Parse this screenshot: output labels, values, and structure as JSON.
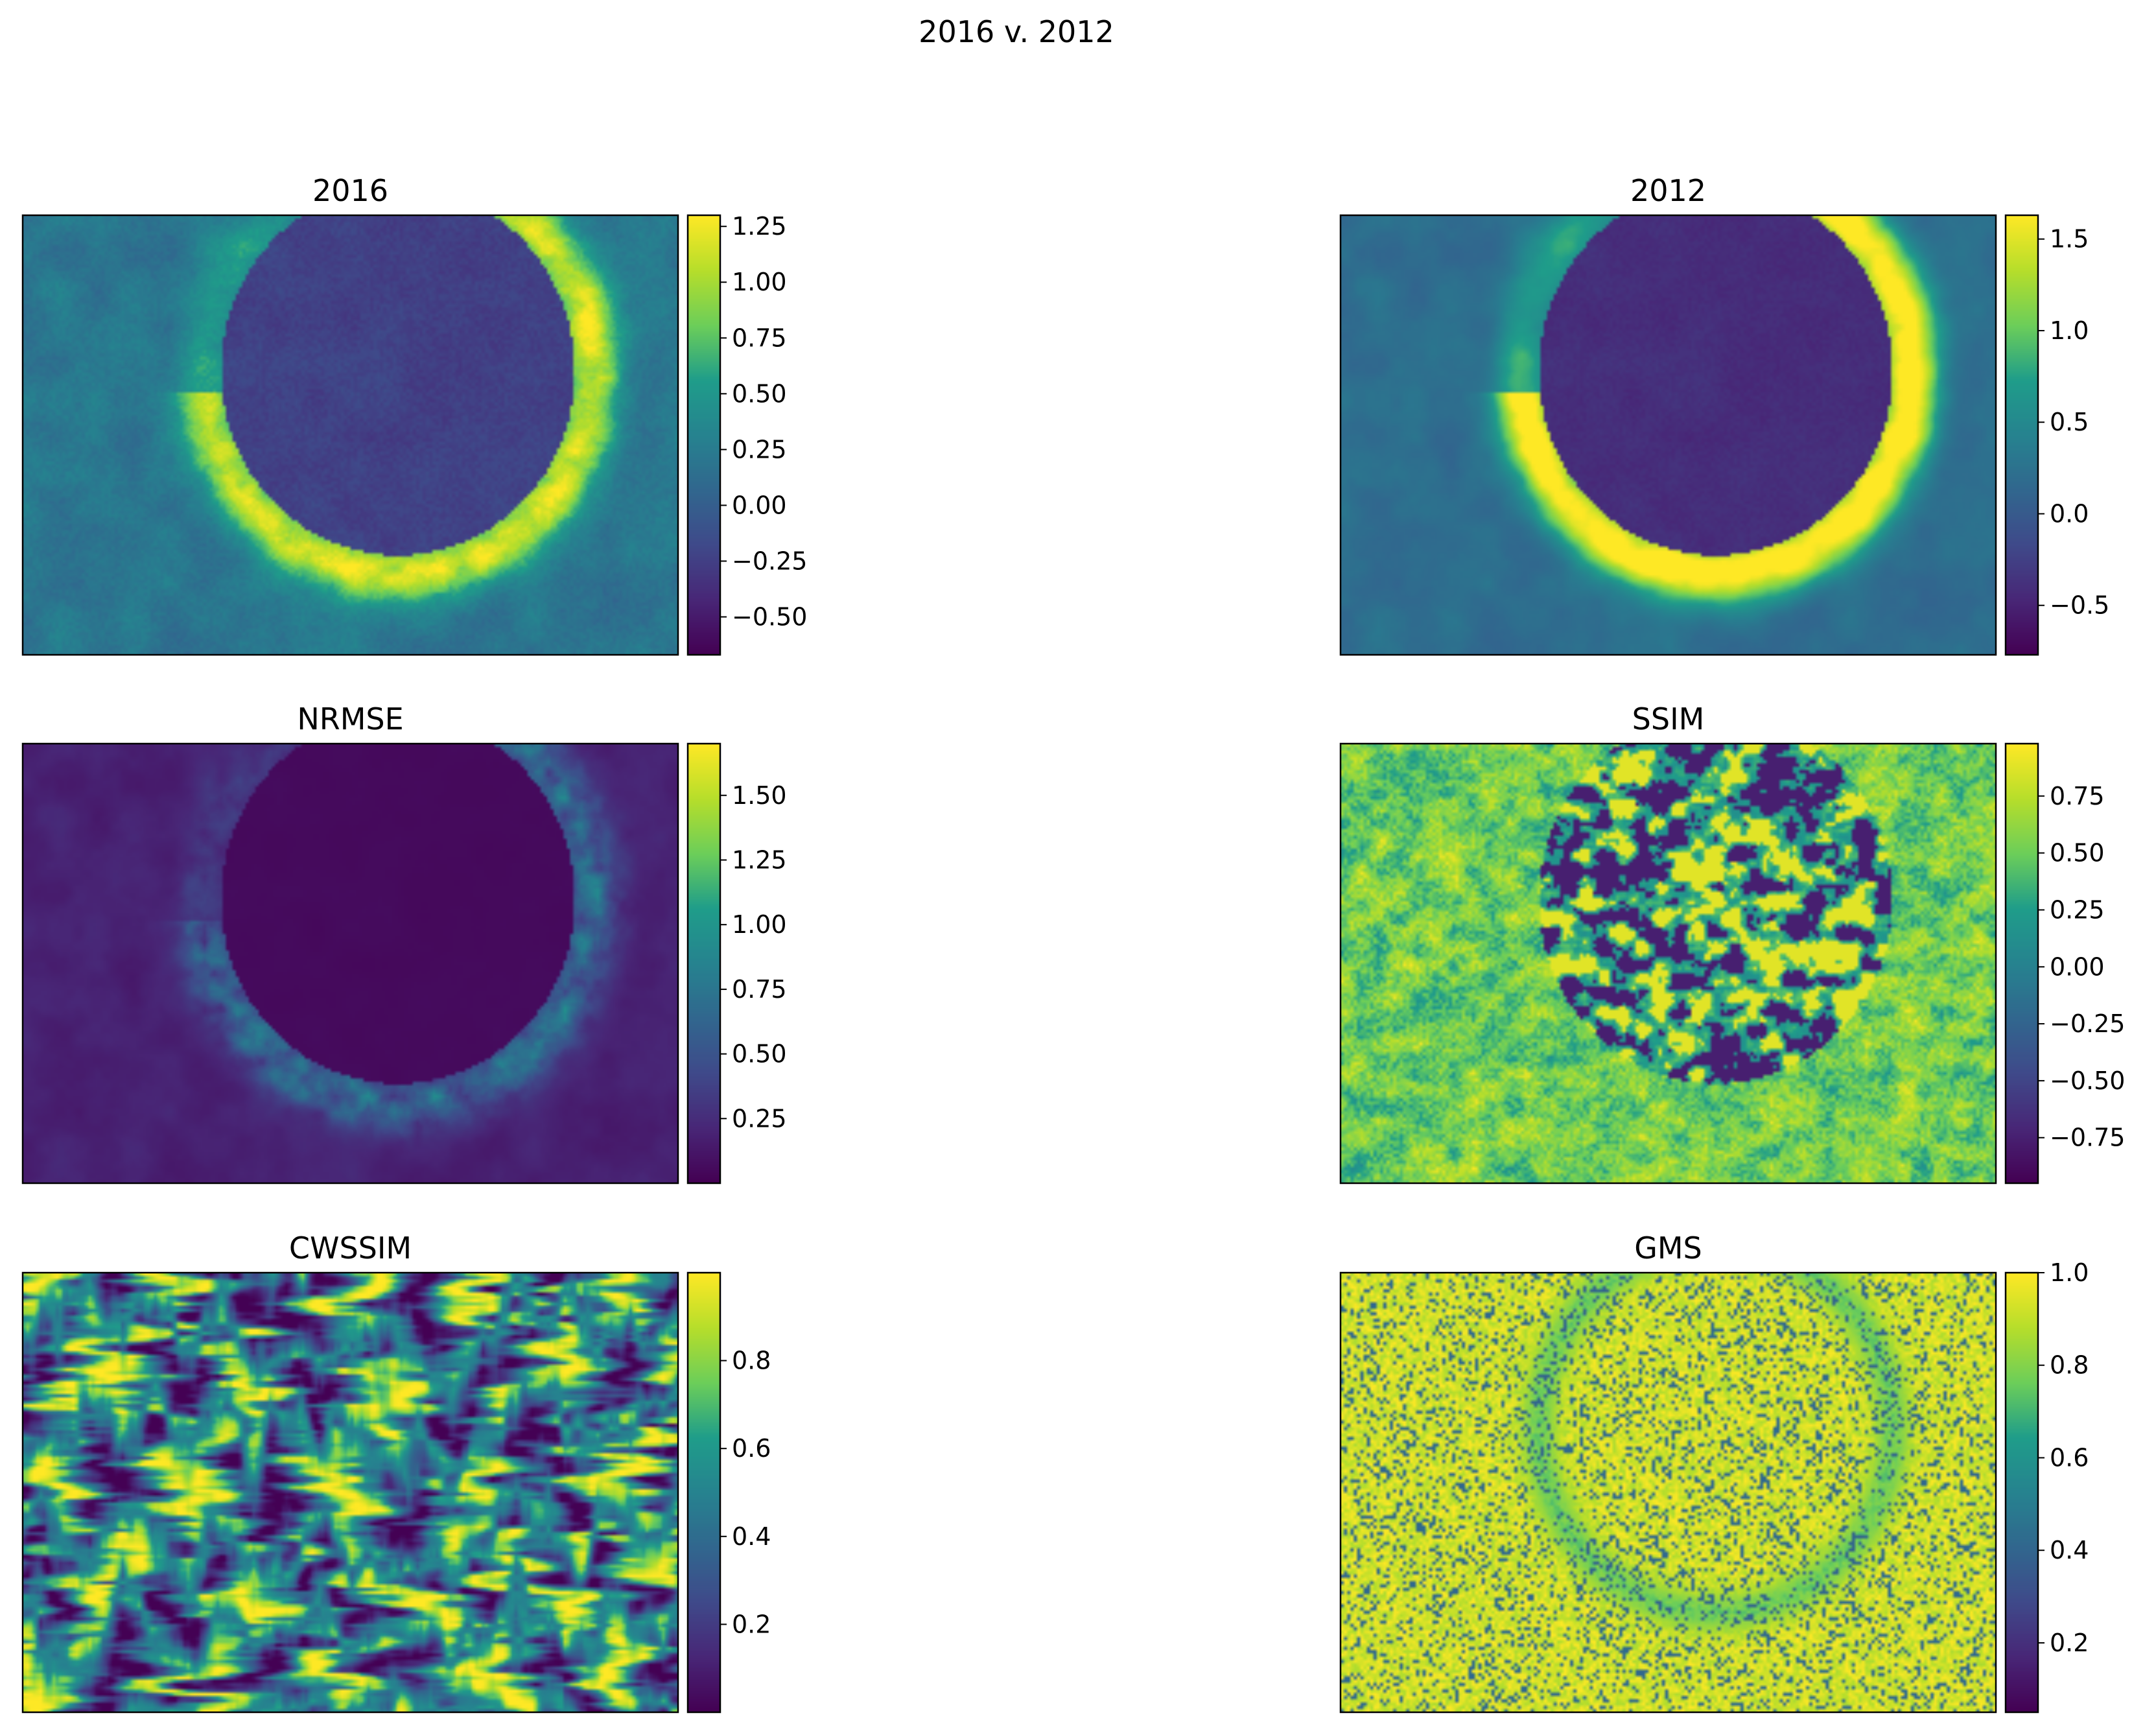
{
  "figure": {
    "suptitle": "2016 v. 2012",
    "colormap": "viridis",
    "colormap_stops": [
      "#440154",
      "#482777",
      "#3f4a8a",
      "#31678e",
      "#26838f",
      "#1f9d8a",
      "#6cce5a",
      "#b6de2b",
      "#fee825"
    ]
  },
  "chart_data": [
    {
      "type": "heatmap",
      "title": "2016",
      "image_kind": "crater",
      "mode": "2016",
      "colorbar": {
        "range": [
          -0.67,
          1.3
        ],
        "ticks": [
          -0.5,
          -0.25,
          0.0,
          0.25,
          0.5,
          0.75,
          1.0,
          1.25
        ],
        "tick_labels": [
          "−0.50",
          "−0.25",
          "0.00",
          "0.25",
          "0.50",
          "0.75",
          "1.00",
          "1.25"
        ]
      }
    },
    {
      "type": "heatmap",
      "title": "2012",
      "image_kind": "crater",
      "mode": "2012",
      "colorbar": {
        "range": [
          -0.77,
          1.63
        ],
        "ticks": [
          -0.5,
          0.0,
          0.5,
          1.0,
          1.5
        ],
        "tick_labels": [
          "−0.5",
          "0.0",
          "0.5",
          "1.0",
          "1.5"
        ]
      }
    },
    {
      "type": "heatmap",
      "title": "NRMSE",
      "image_kind": "crater",
      "mode": "nrmse",
      "colorbar": {
        "range": [
          0.0,
          1.7
        ],
        "ticks": [
          0.25,
          0.5,
          0.75,
          1.0,
          1.25,
          1.5
        ],
        "tick_labels": [
          "0.25",
          "0.50",
          "0.75",
          "1.00",
          "1.25",
          "1.50"
        ]
      }
    },
    {
      "type": "heatmap",
      "title": "SSIM",
      "image_kind": "crater",
      "mode": "ssim",
      "colorbar": {
        "range": [
          -0.95,
          0.98
        ],
        "ticks": [
          -0.75,
          -0.5,
          -0.25,
          0.0,
          0.25,
          0.5,
          0.75
        ],
        "tick_labels": [
          "−0.75",
          "−0.50",
          "−0.25",
          "0.00",
          "0.25",
          "0.50",
          "0.75"
        ]
      }
    },
    {
      "type": "heatmap",
      "title": "CWSSIM",
      "image_kind": "crater",
      "mode": "cwssim",
      "colorbar": {
        "range": [
          0.0,
          1.0
        ],
        "ticks": [
          0.2,
          0.4,
          0.6,
          0.8
        ],
        "tick_labels": [
          "0.2",
          "0.4",
          "0.6",
          "0.8"
        ]
      }
    },
    {
      "type": "heatmap",
      "title": "GMS",
      "image_kind": "crater",
      "mode": "gms",
      "colorbar": {
        "range": [
          0.05,
          1.0
        ],
        "ticks": [
          0.2,
          0.4,
          0.6,
          0.8,
          1.0
        ],
        "tick_labels": [
          "0.2",
          "0.4",
          "0.6",
          "0.8",
          "1.0"
        ]
      }
    }
  ]
}
